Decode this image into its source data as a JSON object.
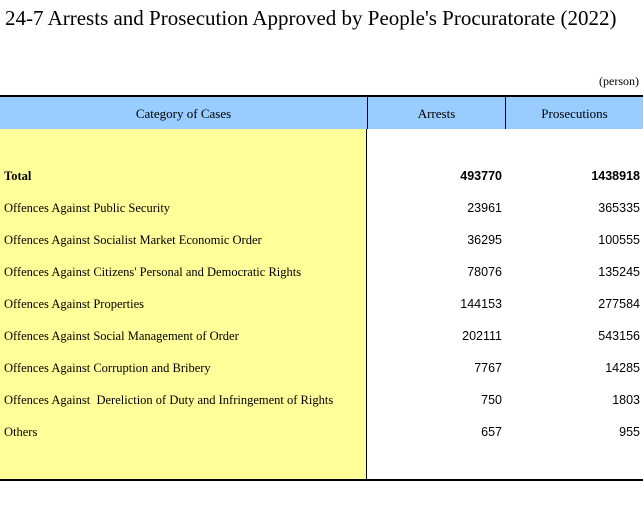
{
  "title": "24-7  Arrests and Prosecution Approved by People's Procuratorate (2022)",
  "unit": "(person)",
  "table": {
    "headers": {
      "category": "Category of Cases",
      "arrests": "Arrests",
      "prosecutions": "Prosecutions"
    },
    "rows": [
      {
        "category": "Total",
        "arrests": "493770",
        "prosecutions": "1438918"
      },
      {
        "category": "Offences Against Public Security",
        "arrests": "23961",
        "prosecutions": "365335"
      },
      {
        "category": "Offences Against Socialist Market Economic Order",
        "arrests": "36295",
        "prosecutions": "100555"
      },
      {
        "category": "Offences Against Citizens' Personal and Democratic Rights",
        "arrests": "78076",
        "prosecutions": "135245"
      },
      {
        "category": "Offences Against Properties",
        "arrests": "144153",
        "prosecutions": "277584"
      },
      {
        "category": "Offences Against Social Management of Order",
        "arrests": "202111",
        "prosecutions": "543156"
      },
      {
        "category": "Offences Against Corruption and Bribery",
        "arrests": "7767",
        "prosecutions": "14285"
      },
      {
        "category": "Offences Against  Dereliction of Duty and Infringement of Rights",
        "arrests": "750",
        "prosecutions": "1803"
      },
      {
        "category": "Others",
        "arrests": "657",
        "prosecutions": "955"
      }
    ]
  },
  "colors": {
    "header_bg": "#99ccff",
    "category_bg": "#ffff99"
  }
}
